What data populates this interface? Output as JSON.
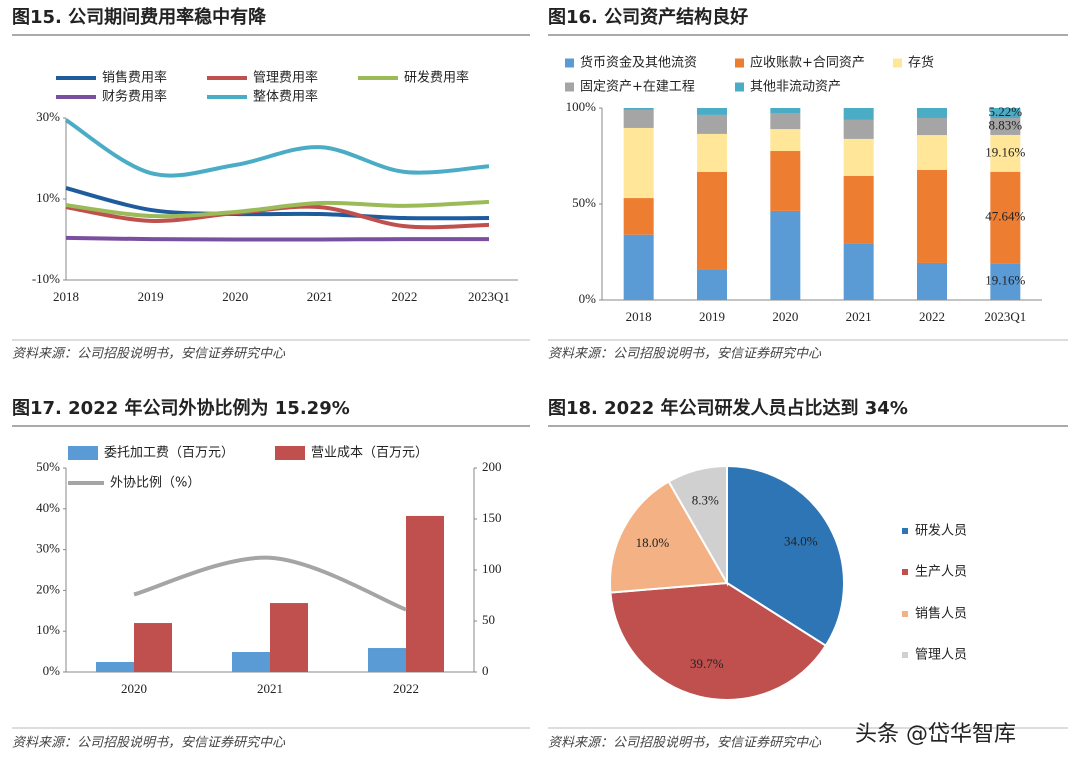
{
  "chart_data": [
    {
      "type": "line",
      "title": "图15. 公司期间费用率稳中有降",
      "source": "资料来源：公司招股说明书，安信证券研究中心",
      "categories": [
        "2018",
        "2019",
        "2020",
        "2021",
        "2022",
        "2023Q1"
      ],
      "ylim": [
        -10,
        30
      ],
      "yticks": [
        {
          "value": -10,
          "label": "-10%"
        },
        {
          "value": 10,
          "label": "10%"
        },
        {
          "value": 30,
          "label": "30%"
        }
      ],
      "series": [
        {
          "name": "销售费用率",
          "color": "#1f5c9e",
          "values": [
            12.7,
            7.3,
            6.3,
            6.3,
            5.3,
            5.3
          ]
        },
        {
          "name": "管理费用率",
          "color": "#c0504d",
          "values": [
            8.0,
            4.6,
            6.5,
            8.0,
            3.3,
            3.6
          ]
        },
        {
          "name": "研发费用率",
          "color": "#9bbb59",
          "values": [
            8.5,
            5.8,
            6.8,
            9.0,
            8.3,
            9.3
          ]
        },
        {
          "name": "财务费用率",
          "color": "#7b4fa0",
          "values": [
            0.4,
            0.1,
            0,
            0,
            0.1,
            0.1
          ]
        },
        {
          "name": "整体费用率",
          "color": "#4bacc6",
          "values": [
            29.5,
            16.4,
            18.4,
            22.8,
            16.7,
            18.1
          ]
        }
      ]
    },
    {
      "type": "bar",
      "stacked": true,
      "title": "图16. 公司资产结构良好",
      "source": "资料来源：公司招股说明书，安信证券研究中心",
      "categories": [
        "2018",
        "2019",
        "2020",
        "2021",
        "2022",
        "2023Q1"
      ],
      "ylim": [
        0,
        100
      ],
      "yticks": [
        {
          "value": 0,
          "label": "0%"
        },
        {
          "value": 50,
          "label": "50%"
        },
        {
          "value": 100,
          "label": "100%"
        }
      ],
      "series": [
        {
          "name": "货币资金及其他流资",
          "color": "#5b9bd5",
          "values": [
            34.0,
            16.1,
            46.4,
            29.2,
            19.3,
            19.16
          ],
          "value_labels": [
            null,
            null,
            null,
            null,
            null,
            "19.16%"
          ]
        },
        {
          "name": "应收账款+合同资产",
          "color": "#ed7d31",
          "values": [
            19.1,
            50.6,
            31.2,
            35.4,
            48.4,
            47.64
          ],
          "value_labels": [
            null,
            null,
            null,
            null,
            null,
            "47.64%"
          ]
        },
        {
          "name": "存货",
          "color": "#ffe699",
          "values": [
            36.5,
            19.8,
            11.4,
            19.3,
            18.2,
            19.16
          ],
          "value_labels": [
            null,
            null,
            null,
            null,
            null,
            "19.16%"
          ]
        },
        {
          "name": "固定资产+在建工程",
          "color": "#a5a5a5",
          "values": [
            9.4,
            9.9,
            8.4,
            9.9,
            8.9,
            8.83
          ],
          "value_labels": [
            null,
            null,
            null,
            null,
            null,
            "8.83%"
          ]
        },
        {
          "name": "其他非流动资产",
          "color": "#4bacc6",
          "values": [
            1.0,
            3.6,
            2.6,
            6.2,
            5.2,
            5.22
          ],
          "value_labels": [
            null,
            null,
            null,
            null,
            null,
            "5.22%"
          ]
        }
      ]
    },
    {
      "type": "bar",
      "title": "图17. 2022 年公司外协比例为 15.29%",
      "source": "资料来源：公司招股说明书，安信证券研究中心",
      "categories": [
        "2020",
        "2021",
        "2022"
      ],
      "ylim": [
        0,
        50
      ],
      "yticks": [
        {
          "value": 0,
          "label": "0%"
        },
        {
          "value": 10,
          "label": "10%"
        },
        {
          "value": 20,
          "label": "20%"
        },
        {
          "value": 30,
          "label": "30%"
        },
        {
          "value": 40,
          "label": "40%"
        },
        {
          "value": 50,
          "label": "50%"
        }
      ],
      "y2lim": [
        0,
        200
      ],
      "y2ticks": [
        0,
        50,
        100,
        150,
        200
      ],
      "series": [
        {
          "name": "委托加工费（百万元）",
          "color": "#5b9bd5",
          "axis": "y2",
          "values": [
            9.8,
            19.6,
            23.5
          ]
        },
        {
          "name": "营业成本（百万元）",
          "color": "#c0504d",
          "axis": "y2",
          "values": [
            48,
            67.6,
            153
          ]
        },
        {
          "name": "外协比例（%）",
          "color": "#a5a5a5",
          "type": "line",
          "values": [
            19,
            28,
            15.29
          ]
        }
      ]
    },
    {
      "type": "pie",
      "title": "图18. 2022 年公司研发人员占比达到 34%",
      "source": "资料来源：公司招股说明书，安信证券研究中心",
      "categories": [
        "研发人员",
        "生产人员",
        "销售人员",
        "管理人员"
      ],
      "values": [
        34.0,
        39.7,
        18.0,
        8.3
      ],
      "value_labels": [
        "34.0%",
        "39.7%",
        "18.0%",
        "8.3%"
      ],
      "colors": [
        "#2e75b6",
        "#c0504d",
        "#f4b183",
        "#d0d0d0"
      ]
    }
  ],
  "watermark": "头条 @岱华智库"
}
